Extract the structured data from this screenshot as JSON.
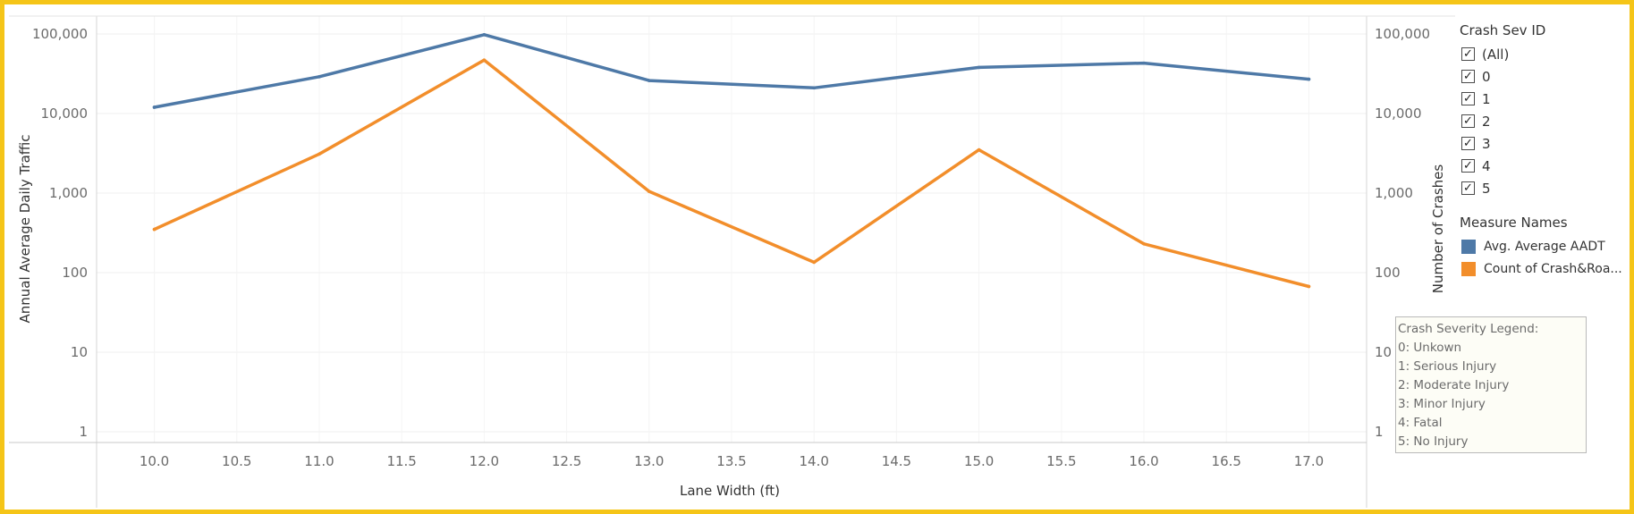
{
  "chart_data": {
    "type": "line",
    "xlabel": "Lane Width (ft)",
    "ylabel_left": "Annual Average Daily Traffic",
    "ylabel_right": "Number of Crashes",
    "xlim": [
      9.65,
      17.35
    ],
    "x_ticks": [
      "10.0",
      "10.5",
      "11.0",
      "11.5",
      "12.0",
      "12.5",
      "13.0",
      "13.5",
      "14.0",
      "14.5",
      "15.0",
      "15.5",
      "16.0",
      "16.5",
      "17.0"
    ],
    "y_scale": "log",
    "ylim": [
      1,
      100000
    ],
    "y_ticks": [
      "1",
      "10",
      "100",
      "1,000",
      "10,000",
      "100,000"
    ],
    "grid": true,
    "series": [
      {
        "name": "Avg. Average AADT",
        "axis": "left",
        "color": "#4e79a7",
        "x": [
          10,
          11,
          12,
          13,
          14,
          15,
          16,
          17
        ],
        "values": [
          12000,
          29000,
          98000,
          26000,
          21000,
          38000,
          43000,
          27000
        ]
      },
      {
        "name": "Count of Crash&Roa...",
        "axis": "right",
        "color": "#f28e2b",
        "x": [
          10,
          11,
          12,
          13,
          14,
          15,
          16,
          17
        ],
        "values": [
          350,
          3100,
          47000,
          1050,
          135,
          3500,
          230,
          67
        ]
      }
    ]
  },
  "filter": {
    "title": "Crash Sev ID",
    "check_glyph": "✓",
    "items": [
      "(All)",
      "0",
      "1",
      "2",
      "3",
      "4",
      "5"
    ]
  },
  "legend": {
    "title": "Measure Names",
    "items": [
      {
        "label": "Avg. Average AADT",
        "color": "#4e79a7"
      },
      {
        "label": "Count of Crash&Roa...",
        "color": "#f28e2b"
      }
    ]
  },
  "severity_note": {
    "lines": [
      "Crash Severity Legend:",
      "0: Unkown",
      "1: Serious Injury",
      "2: Moderate Injury",
      "3: Minor Injury",
      "4: Fatal",
      "5: No Injury"
    ]
  }
}
